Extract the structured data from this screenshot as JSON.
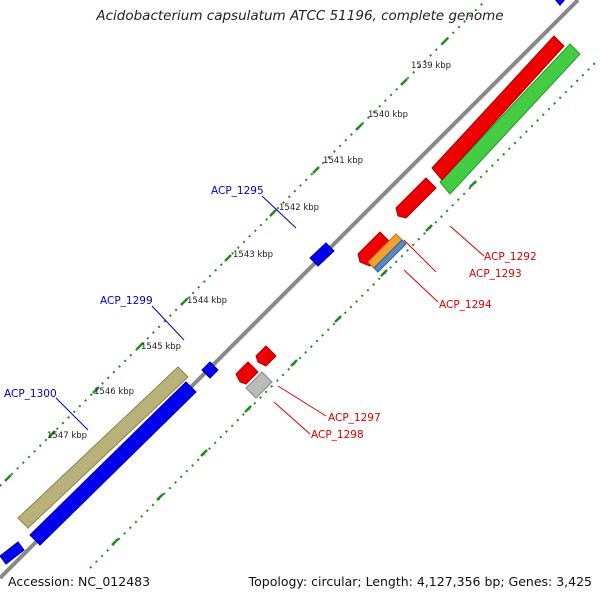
{
  "title": "Acidobacterium capsulatum ATCC 51196, complete genome",
  "footer": {
    "accession": "Accession: NC_012483",
    "summary": "Topology: circular; Length: 4,127,356 bp; Genes: 3,425"
  },
  "scale_labels": [
    "1539 kbp",
    "1540 kbp",
    "1541 kbp",
    "1542 kbp",
    "1543 kbp",
    "1544 kbp",
    "1545 kbp",
    "1546 kbp",
    "1547 kbp"
  ],
  "gene_labels": [
    "ACP_1295",
    "ACP_1299",
    "ACP_1300",
    "ACP_1292",
    "ACP_1293",
    "ACP_1294",
    "ACP_1297",
    "ACP_1298"
  ],
  "colors": {
    "forward_cds": "#0000ee",
    "reverse_cds": "#ee0000",
    "trna_band": "#44cc44",
    "rrna_band": "#b8b27a",
    "orange_feature": "#f0a030",
    "steel_feature": "#5b88c0",
    "gray_feature": "#bbbbbb",
    "backbone": "#888888",
    "ticks": "#228822",
    "forward_label": "#0000cc",
    "reverse_label": "#dd0000"
  }
}
